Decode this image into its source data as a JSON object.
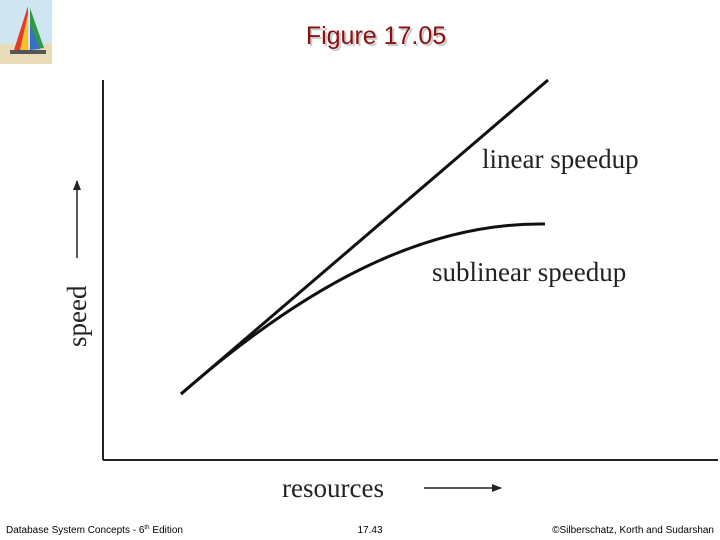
{
  "header": {
    "title": "Figure 17.05"
  },
  "diagram": {
    "y_axis_label": "speed",
    "x_axis_label": "resources",
    "curves": [
      {
        "label": "linear speedup"
      },
      {
        "label": "sublinear speedup"
      }
    ]
  },
  "footer": {
    "left": {
      "text": "Database System Concepts - 6",
      "superscript": "th",
      "suffix": "Edition"
    },
    "center": "17.43",
    "right": "©Silberschatz, Korth and Sudarshan"
  }
}
